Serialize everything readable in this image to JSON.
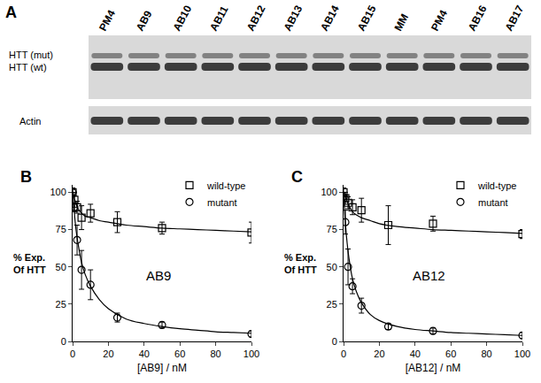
{
  "blot": {
    "panel": "A",
    "lanes": [
      "PM4",
      "AB9",
      "AB10",
      "AB11",
      "AB12",
      "AB13",
      "AB14",
      "AB15",
      "MM",
      "PM4",
      "AB16",
      "AB17"
    ],
    "rows": [
      "HTT (mut)",
      "HTT (wt)"
    ],
    "loading_control": "Actin"
  },
  "chart_data": [
    {
      "type": "scatter",
      "panel": "B",
      "annotations": [
        "AB9"
      ],
      "xlabel": "[AB9] / nM",
      "ylabel": "% Exp.\nOf HTT",
      "xlim": [
        0,
        100
      ],
      "xticks": [
        0,
        20,
        40,
        60,
        80,
        100
      ],
      "ylim": [
        0,
        105
      ],
      "yticks": [
        0,
        25,
        50,
        75,
        100
      ],
      "grid": false,
      "legend": "upper right",
      "x": [
        0,
        1,
        2.5,
        5,
        10,
        25,
        50,
        100
      ],
      "series": [
        {
          "name": "wild-type",
          "color": "#000000",
          "marker": "square",
          "values": [
            100,
            95,
            90,
            83,
            86,
            80,
            76,
            73
          ],
          "errors": [
            3,
            5,
            4,
            8,
            6,
            7,
            4,
            7
          ],
          "fit": {
            "x": [
              0,
              1,
              2,
              3,
              5,
              7,
              10,
              15,
              20,
              30,
              40,
              50,
              60,
              70,
              80,
              90,
              100
            ],
            "values": [
              100,
              96,
              92,
              89,
              86,
              84,
              83,
              81,
              80,
              78,
              77,
              76,
              75.5,
              75,
              74.5,
              74,
              73.5
            ]
          }
        },
        {
          "name": "mutant",
          "color": "#000000",
          "marker": "circle",
          "values": [
            100,
            90,
            68,
            48,
            38,
            16,
            11,
            5
          ],
          "errors": [
            2,
            3,
            10,
            13,
            10,
            3,
            2,
            2
          ],
          "fit": {
            "x": [
              0,
              1,
              2,
              3,
              5,
              7,
              10,
              15,
              20,
              30,
              40,
              50,
              60,
              70,
              80,
              90,
              100
            ],
            "values": [
              100,
              86,
              74,
              66,
              53,
              45,
              37,
              28,
              22,
              15,
              12,
              10,
              8.5,
              7.5,
              6.5,
              6,
              5.5
            ]
          }
        }
      ]
    },
    {
      "type": "scatter",
      "panel": "C",
      "annotations": [
        "AB12"
      ],
      "xlabel": "[AB12] / nM",
      "ylabel": "% Exp.\nOf HTT",
      "xlim": [
        0,
        100
      ],
      "xticks": [
        0,
        20,
        40,
        60,
        80,
        100
      ],
      "ylim": [
        0,
        105
      ],
      "yticks": [
        0,
        25,
        50,
        75,
        100
      ],
      "grid": false,
      "legend": "upper right",
      "x": [
        0,
        1,
        2.5,
        5,
        10,
        25,
        50,
        100
      ],
      "series": [
        {
          "name": "wild-type",
          "color": "#000000",
          "marker": "square",
          "values": [
            100,
            96,
            93,
            90,
            88,
            78,
            79,
            72
          ],
          "errors": [
            3,
            4,
            4,
            5,
            8,
            13,
            5,
            3
          ],
          "fit": {
            "x": [
              0,
              1,
              2,
              3,
              5,
              7,
              10,
              15,
              20,
              30,
              40,
              50,
              60,
              70,
              80,
              90,
              100
            ],
            "values": [
              100,
              97,
              94,
              91,
              87,
              85,
              83,
              81,
              79,
              77,
              76,
              75,
              74.5,
              74,
              73.5,
              73,
              72.5
            ]
          }
        },
        {
          "name": "mutant",
          "color": "#000000",
          "marker": "circle",
          "values": [
            97,
            80,
            50,
            37,
            24,
            10,
            7,
            4
          ],
          "errors": [
            3,
            8,
            12,
            5,
            5,
            2,
            2,
            2
          ],
          "fit": {
            "x": [
              0,
              1,
              2,
              3,
              5,
              7,
              10,
              15,
              20,
              30,
              40,
              50,
              60,
              70,
              80,
              90,
              100
            ],
            "values": [
              100,
              80,
              66,
              56,
              42,
              34,
              26,
              18,
              14,
              10,
              8,
              7,
              6,
              5.5,
              5,
              4.5,
              4
            ]
          }
        }
      ]
    }
  ]
}
